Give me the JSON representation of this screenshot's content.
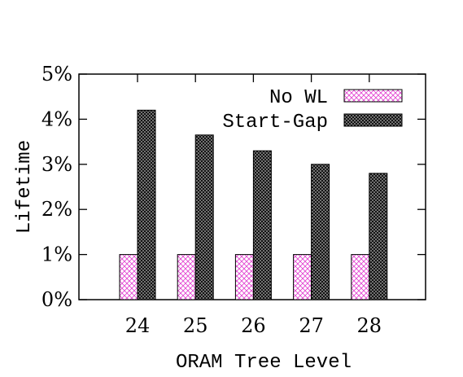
{
  "chart_data": {
    "type": "bar",
    "xlabel": "ORAM Tree Level",
    "ylabel": "Lifetime",
    "categories": [
      "24",
      "25",
      "26",
      "27",
      "28"
    ],
    "ylim": [
      0,
      5
    ],
    "yticks": [
      {
        "value": 0,
        "label": "0%"
      },
      {
        "value": 1,
        "label": "1%"
      },
      {
        "value": 2,
        "label": "2%"
      },
      {
        "value": 3,
        "label": "3%"
      },
      {
        "value": 4,
        "label": "4%"
      },
      {
        "value": 5,
        "label": "5%"
      }
    ],
    "series": [
      {
        "name": "No WL",
        "values": [
          1,
          1,
          1,
          1,
          1
        ],
        "color": "#e23fd0",
        "pattern": "light-crosshatch"
      },
      {
        "name": "Start-Gap",
        "values": [
          4.2,
          3.65,
          3.3,
          3.0,
          2.8
        ],
        "color": "#000000",
        "pattern": "dense-crosshatch"
      }
    ],
    "legend_position": "top-right",
    "grid": false
  }
}
